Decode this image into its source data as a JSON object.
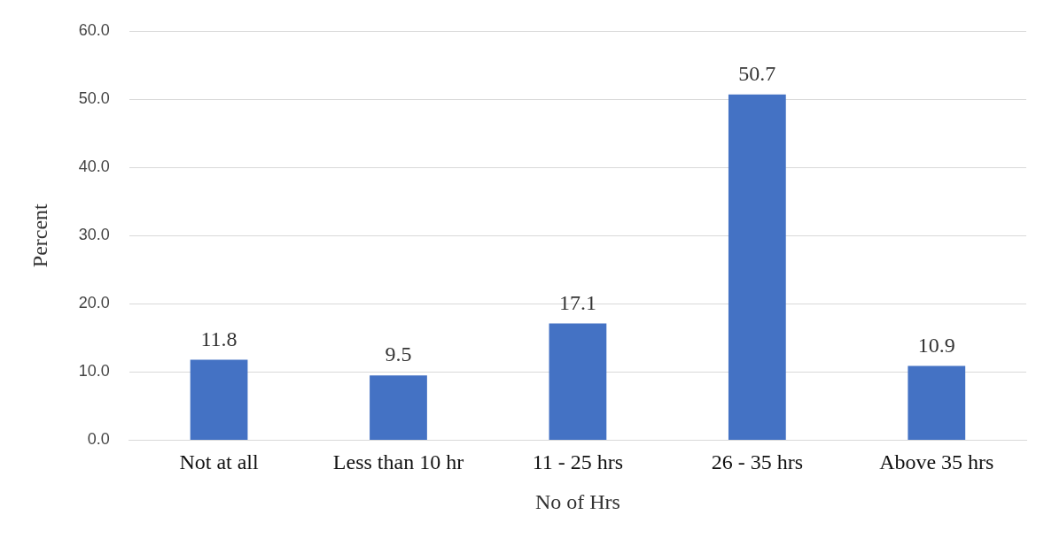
{
  "chart_data": {
    "type": "bar",
    "xlabel": "No of Hrs",
    "ylabel": "Percent",
    "categories": [
      "Not at all",
      "Less than 10 hr",
      "11 - 25 hrs",
      "26 - 35 hrs",
      "Above 35 hrs"
    ],
    "values": [
      11.8,
      9.5,
      17.1,
      50.7,
      10.9
    ],
    "color": "#4472c4",
    "ylim": [
      0,
      60
    ],
    "yticks": [
      {
        "value": 0,
        "label": "0.0"
      },
      {
        "value": 10,
        "label": "10.0"
      },
      {
        "value": 20,
        "label": "20.0"
      },
      {
        "value": 30,
        "label": "30.0"
      },
      {
        "value": 40,
        "label": "40.0"
      },
      {
        "value": 50,
        "label": "50.0"
      },
      {
        "value": 60,
        "label": "60.0"
      }
    ],
    "grid": "y",
    "data_labels": true,
    "legend": false
  }
}
